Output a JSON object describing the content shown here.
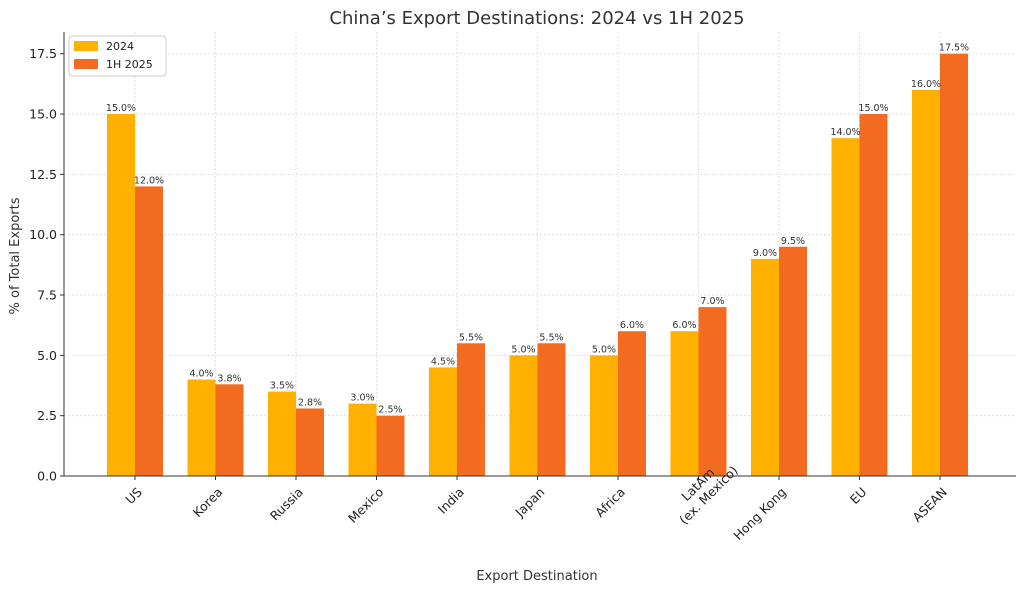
{
  "chart_data": {
    "type": "bar",
    "title": "China’s Export Destinations: 2024 vs 1H 2025",
    "xlabel": "Export Destination",
    "ylabel": "% of Total Exports",
    "categories": [
      "US",
      "Korea",
      "Russia",
      "Mexico",
      "India",
      "Japan",
      "Africa",
      "LatAm\n(ex. Mexico)",
      "Hong Kong",
      "EU",
      "ASEAN"
    ],
    "series": [
      {
        "name": "2024",
        "color": "#FFB000",
        "values": [
          15.0,
          4.0,
          3.5,
          3.0,
          4.5,
          5.0,
          5.0,
          6.0,
          9.0,
          14.0,
          16.0
        ]
      },
      {
        "name": "1H 2025",
        "color": "#F26B21",
        "values": [
          12.0,
          3.8,
          2.8,
          2.5,
          5.5,
          5.5,
          6.0,
          7.0,
          9.5,
          15.0,
          17.5
        ]
      }
    ],
    "ylim": [
      0,
      18.4
    ],
    "yticks": [
      "0.0",
      "2.5",
      "5.0",
      "7.5",
      "10.0",
      "12.5",
      "15.0",
      "17.5"
    ],
    "grid": true,
    "legend_position": "top-left"
  }
}
